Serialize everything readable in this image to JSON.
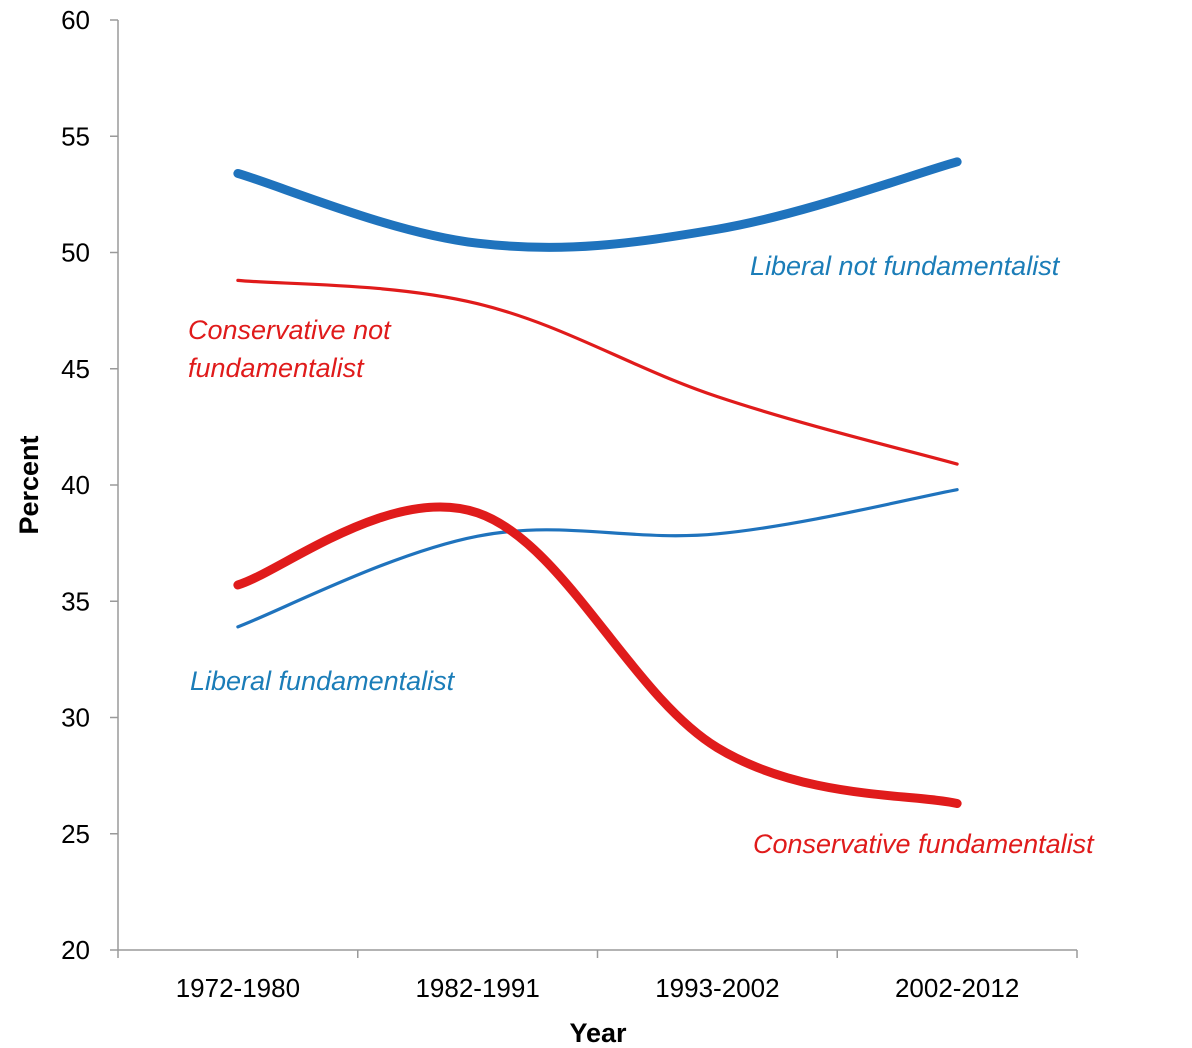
{
  "chart_data": {
    "type": "line",
    "xlabel": "Year",
    "ylabel": "Percent",
    "categories": [
      "1972-1980",
      "1982-1991",
      "1993-2002",
      "2002-2012"
    ],
    "ylim": [
      20,
      60
    ],
    "yticks": [
      20,
      25,
      30,
      35,
      40,
      45,
      50,
      55,
      60
    ],
    "grid": false,
    "smooth": true,
    "series": [
      {
        "name": "Liberal not fundamentalist",
        "values": [
          53.4,
          50.4,
          51.0,
          53.9
        ],
        "color": "#1f73bd",
        "weight": "thick",
        "label_lines": [
          "Liberal not fundamentalist"
        ],
        "label_color": "#1b7db8"
      },
      {
        "name": "Conservative not fundamentalist",
        "values": [
          48.8,
          47.8,
          43.8,
          40.9
        ],
        "color": "#e01b1b",
        "weight": "thin",
        "label_lines": [
          "Conservative not",
          "fundamentalist"
        ],
        "label_color": "#e01b1b"
      },
      {
        "name": "Liberal fundamentalist",
        "values": [
          33.9,
          37.8,
          37.9,
          39.8
        ],
        "color": "#1f73bd",
        "weight": "thin",
        "label_lines": [
          "Liberal fundamentalist"
        ],
        "label_color": "#1b7db8"
      },
      {
        "name": "Conservative fundamentalist",
        "values": [
          35.7,
          38.8,
          28.7,
          26.3
        ],
        "color": "#e01b1b",
        "weight": "thick",
        "label_lines": [
          "Conservative fundamentalist"
        ],
        "label_color": "#e01b1b"
      }
    ]
  }
}
